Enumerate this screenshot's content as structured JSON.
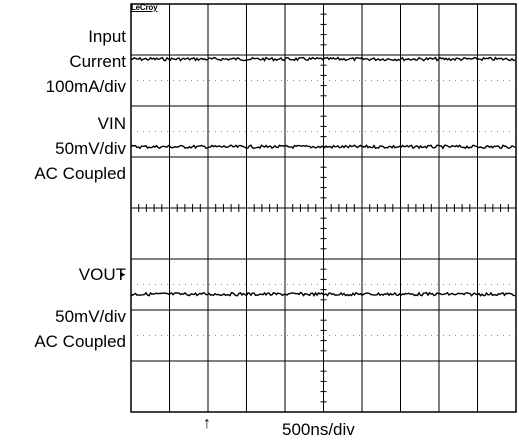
{
  "brand": "LeCroy",
  "channels": [
    {
      "name": "Input Current",
      "label_lines": [
        "Input",
        "Current",
        "100mA/div"
      ]
    },
    {
      "name": "VIN",
      "label_lines": [
        "VIN",
        "50mV/div",
        "AC Coupled"
      ]
    },
    {
      "name": "VOUT",
      "label_lines": [
        "VOUT",
        "50mV/div",
        "AC Coupled"
      ]
    }
  ],
  "timebase": "500ns/div",
  "trigger_marker": "↑",
  "ground_marker": "▸",
  "chart_data": {
    "type": "line",
    "title": "",
    "xlabel": "500ns/div",
    "ylabel": "",
    "grid": true,
    "divisions": {
      "x": 10,
      "y": 8
    },
    "xlim": [
      0,
      5000
    ],
    "ylim": [
      0,
      8
    ],
    "x_unit": "ns",
    "y_unit": "div",
    "series": [
      {
        "name": "Input Current",
        "scale": "100mA/div",
        "level_div": 6.92,
        "noise_div": 0.03
      },
      {
        "name": "VIN",
        "scale": "50mV/div",
        "level_div": 5.2,
        "noise_div": 0.03
      },
      {
        "name": "VOUT",
        "scale": "50mV/div",
        "level_div": 2.31,
        "noise_div": 0.03
      }
    ]
  }
}
